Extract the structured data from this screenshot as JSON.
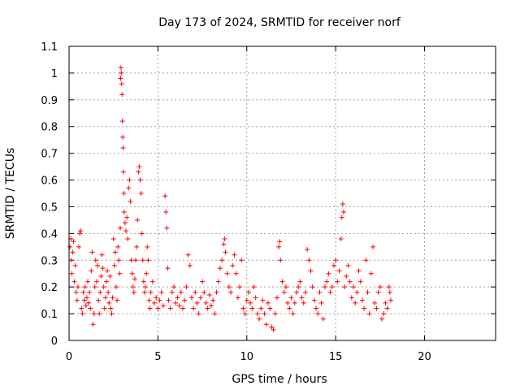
{
  "chart_data": {
    "type": "scatter",
    "title": "Day 173 of 2024, SRMTID for receiver norf",
    "xlabel": "GPS time / hours",
    "ylabel": "SRMTID / TECUs",
    "xlim": [
      0,
      24
    ],
    "ylim": [
      0,
      1.1
    ],
    "xticks": [
      0,
      5,
      10,
      15,
      20
    ],
    "yticks": [
      0,
      0.1,
      0.2,
      0.3,
      0.4,
      0.5,
      0.6,
      0.7,
      0.8,
      0.9,
      1,
      1.1
    ],
    "ytick_labels": [
      "0",
      "0.1",
      "0.2",
      "0.3",
      "0.4",
      "0.5",
      "0.6",
      "0.7",
      "0.8",
      "0.9",
      "1",
      "1.1"
    ],
    "grid": true,
    "marker": "+",
    "marker_color": "#ff0000",
    "series": [
      {
        "name": "SRMTID",
        "points": [
          [
            0.05,
            0.35
          ],
          [
            0.1,
            0.38
          ],
          [
            0.12,
            0.3
          ],
          [
            0.15,
            0.25
          ],
          [
            0.2,
            0.33
          ],
          [
            0.25,
            0.37
          ],
          [
            0.3,
            0.22
          ],
          [
            0.35,
            0.28
          ],
          [
            0.4,
            0.18
          ],
          [
            0.45,
            0.15
          ],
          [
            0.5,
            0.2
          ],
          [
            0.55,
            0.35
          ],
          [
            0.6,
            0.4
          ],
          [
            0.65,
            0.41
          ],
          [
            0.7,
            0.12
          ],
          [
            0.75,
            0.1
          ],
          [
            0.8,
            0.18
          ],
          [
            0.85,
            0.15
          ],
          [
            0.9,
            0.2
          ],
          [
            0.95,
            0.13
          ],
          [
            1.0,
            0.16
          ],
          [
            1.05,
            0.22
          ],
          [
            1.1,
            0.14
          ],
          [
            1.15,
            0.18
          ],
          [
            1.2,
            0.12
          ],
          [
            1.25,
            0.26
          ],
          [
            1.3,
            0.33
          ],
          [
            1.35,
            0.06
          ],
          [
            1.4,
            0.1
          ],
          [
            1.45,
            0.2
          ],
          [
            1.5,
            0.3
          ],
          [
            1.55,
            0.22
          ],
          [
            1.6,
            0.28
          ],
          [
            1.65,
            0.15
          ],
          [
            1.7,
            0.1
          ],
          [
            1.75,
            0.18
          ],
          [
            1.8,
            0.24
          ],
          [
            1.85,
            0.32
          ],
          [
            1.9,
            0.27
          ],
          [
            1.95,
            0.2
          ],
          [
            2.0,
            0.12
          ],
          [
            2.05,
            0.16
          ],
          [
            2.1,
            0.22
          ],
          [
            2.15,
            0.26
          ],
          [
            2.2,
            0.18
          ],
          [
            2.25,
            0.14
          ],
          [
            2.3,
            0.24
          ],
          [
            2.35,
            0.12
          ],
          [
            2.4,
            0.1
          ],
          [
            2.45,
            0.16
          ],
          [
            2.5,
            0.38
          ],
          [
            2.55,
            0.28
          ],
          [
            2.6,
            0.33
          ],
          [
            2.65,
            0.2
          ],
          [
            2.7,
            0.15
          ],
          [
            2.75,
            0.35
          ],
          [
            2.8,
            0.3
          ],
          [
            2.85,
            0.25
          ],
          [
            2.88,
            0.42
          ],
          [
            2.9,
            0.98
          ],
          [
            2.92,
            1.02
          ],
          [
            2.94,
            1.0
          ],
          [
            2.96,
            0.96
          ],
          [
            2.98,
            0.92
          ],
          [
            3.0,
            0.82
          ],
          [
            3.02,
            0.76
          ],
          [
            3.04,
            0.72
          ],
          [
            3.06,
            0.63
          ],
          [
            3.08,
            0.55
          ],
          [
            3.1,
            0.48
          ],
          [
            3.15,
            0.44
          ],
          [
            3.2,
            0.41
          ],
          [
            3.25,
            0.46
          ],
          [
            3.3,
            0.38
          ],
          [
            3.35,
            0.57
          ],
          [
            3.4,
            0.6
          ],
          [
            3.45,
            0.52
          ],
          [
            3.5,
            0.3
          ],
          [
            3.55,
            0.25
          ],
          [
            3.6,
            0.2
          ],
          [
            3.65,
            0.18
          ],
          [
            3.7,
            0.23
          ],
          [
            3.75,
            0.3
          ],
          [
            3.8,
            0.35
          ],
          [
            3.85,
            0.45
          ],
          [
            3.9,
            0.63
          ],
          [
            3.95,
            0.65
          ],
          [
            4.0,
            0.6
          ],
          [
            4.05,
            0.55
          ],
          [
            4.1,
            0.4
          ],
          [
            4.15,
            0.3
          ],
          [
            4.2,
            0.22
          ],
          [
            4.25,
            0.18
          ],
          [
            4.3,
            0.2
          ],
          [
            4.35,
            0.25
          ],
          [
            4.4,
            0.35
          ],
          [
            4.45,
            0.3
          ],
          [
            4.5,
            0.15
          ],
          [
            4.55,
            0.12
          ],
          [
            4.6,
            0.18
          ],
          [
            4.7,
            0.22
          ],
          [
            4.8,
            0.14
          ],
          [
            4.9,
            0.16
          ],
          [
            5.0,
            0.12
          ],
          [
            5.1,
            0.15
          ],
          [
            5.2,
            0.18
          ],
          [
            5.3,
            0.13
          ],
          [
            5.4,
            0.54
          ],
          [
            5.45,
            0.48
          ],
          [
            5.5,
            0.42
          ],
          [
            5.55,
            0.27
          ],
          [
            5.6,
            0.15
          ],
          [
            5.7,
            0.12
          ],
          [
            5.8,
            0.18
          ],
          [
            5.9,
            0.2
          ],
          [
            6.0,
            0.14
          ],
          [
            6.1,
            0.16
          ],
          [
            6.2,
            0.13
          ],
          [
            6.3,
            0.18
          ],
          [
            6.4,
            0.12
          ],
          [
            6.5,
            0.15
          ],
          [
            6.6,
            0.2
          ],
          [
            6.7,
            0.32
          ],
          [
            6.8,
            0.28
          ],
          [
            6.9,
            0.16
          ],
          [
            7.0,
            0.12
          ],
          [
            7.1,
            0.18
          ],
          [
            7.2,
            0.14
          ],
          [
            7.3,
            0.1
          ],
          [
            7.4,
            0.16
          ],
          [
            7.5,
            0.22
          ],
          [
            7.6,
            0.18
          ],
          [
            7.7,
            0.14
          ],
          [
            7.8,
            0.12
          ],
          [
            7.9,
            0.17
          ],
          [
            8.0,
            0.13
          ],
          [
            8.1,
            0.15
          ],
          [
            8.2,
            0.1
          ],
          [
            8.3,
            0.18
          ],
          [
            8.4,
            0.22
          ],
          [
            8.5,
            0.27
          ],
          [
            8.6,
            0.3
          ],
          [
            8.7,
            0.36
          ],
          [
            8.75,
            0.38
          ],
          [
            8.8,
            0.33
          ],
          [
            8.9,
            0.25
          ],
          [
            9.0,
            0.2
          ],
          [
            9.1,
            0.18
          ],
          [
            9.2,
            0.28
          ],
          [
            9.3,
            0.32
          ],
          [
            9.4,
            0.25
          ],
          [
            9.5,
            0.16
          ],
          [
            9.6,
            0.2
          ],
          [
            9.7,
            0.3
          ],
          [
            9.8,
            0.12
          ],
          [
            9.9,
            0.1
          ],
          [
            10.0,
            0.15
          ],
          [
            10.1,
            0.18
          ],
          [
            10.2,
            0.14
          ],
          [
            10.3,
            0.12
          ],
          [
            10.4,
            0.2
          ],
          [
            10.5,
            0.16
          ],
          [
            10.6,
            0.1
          ],
          [
            10.7,
            0.08
          ],
          [
            10.8,
            0.12
          ],
          [
            10.9,
            0.15
          ],
          [
            11.0,
            0.1
          ],
          [
            11.1,
            0.06
          ],
          [
            11.2,
            0.14
          ],
          [
            11.3,
            0.12
          ],
          [
            11.4,
            0.05
          ],
          [
            11.5,
            0.04
          ],
          [
            11.6,
            0.1
          ],
          [
            11.7,
            0.16
          ],
          [
            11.8,
            0.35
          ],
          [
            11.85,
            0.37
          ],
          [
            11.9,
            0.3
          ],
          [
            12.0,
            0.22
          ],
          [
            12.1,
            0.18
          ],
          [
            12.2,
            0.2
          ],
          [
            12.3,
            0.14
          ],
          [
            12.4,
            0.12
          ],
          [
            12.5,
            0.16
          ],
          [
            12.6,
            0.1
          ],
          [
            12.7,
            0.14
          ],
          [
            12.8,
            0.18
          ],
          [
            12.9,
            0.2
          ],
          [
            13.0,
            0.22
          ],
          [
            13.1,
            0.16
          ],
          [
            13.2,
            0.14
          ],
          [
            13.3,
            0.18
          ],
          [
            13.4,
            0.34
          ],
          [
            13.5,
            0.3
          ],
          [
            13.6,
            0.26
          ],
          [
            13.7,
            0.2
          ],
          [
            13.8,
            0.15
          ],
          [
            13.9,
            0.12
          ],
          [
            14.0,
            0.1
          ],
          [
            14.1,
            0.18
          ],
          [
            14.2,
            0.14
          ],
          [
            14.3,
            0.08
          ],
          [
            14.4,
            0.2
          ],
          [
            14.5,
            0.22
          ],
          [
            14.6,
            0.25
          ],
          [
            14.7,
            0.18
          ],
          [
            14.8,
            0.2
          ],
          [
            14.9,
            0.28
          ],
          [
            15.0,
            0.3
          ],
          [
            15.1,
            0.22
          ],
          [
            15.2,
            0.26
          ],
          [
            15.3,
            0.38
          ],
          [
            15.35,
            0.46
          ],
          [
            15.4,
            0.51
          ],
          [
            15.45,
            0.48
          ],
          [
            15.5,
            0.2
          ],
          [
            15.6,
            0.24
          ],
          [
            15.7,
            0.28
          ],
          [
            15.8,
            0.22
          ],
          [
            15.9,
            0.16
          ],
          [
            16.0,
            0.2
          ],
          [
            16.1,
            0.14
          ],
          [
            16.2,
            0.18
          ],
          [
            16.3,
            0.26
          ],
          [
            16.4,
            0.22
          ],
          [
            16.5,
            0.15
          ],
          [
            16.6,
            0.12
          ],
          [
            16.7,
            0.3
          ],
          [
            16.8,
            0.18
          ],
          [
            16.9,
            0.1
          ],
          [
            17.0,
            0.25
          ],
          [
            17.1,
            0.35
          ],
          [
            17.2,
            0.14
          ],
          [
            17.3,
            0.12
          ],
          [
            17.4,
            0.18
          ],
          [
            17.5,
            0.2
          ],
          [
            17.6,
            0.08
          ],
          [
            17.7,
            0.1
          ],
          [
            17.8,
            0.14
          ],
          [
            17.9,
            0.12
          ],
          [
            18.0,
            0.2
          ],
          [
            18.05,
            0.18
          ],
          [
            18.1,
            0.15
          ]
        ]
      }
    ]
  }
}
